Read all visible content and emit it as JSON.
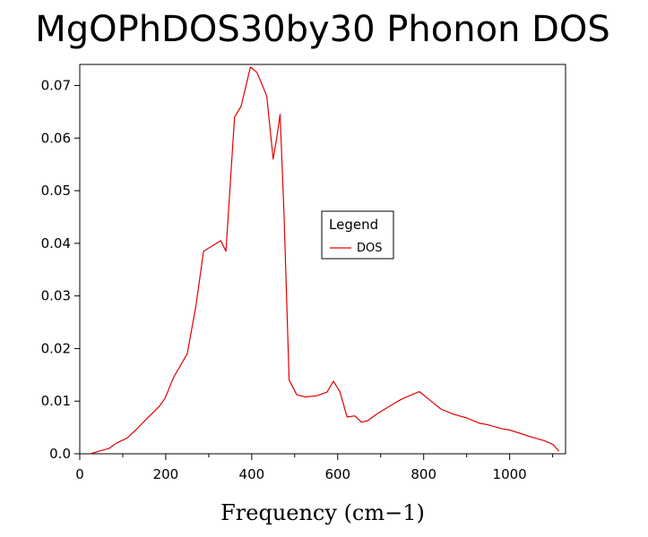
{
  "chart_data": {
    "type": "line",
    "title": "MgOPhDOS30by30 Phonon DOS",
    "xlabel": "Frequency (cm−1)",
    "ylabel": "",
    "xlim": [
      0,
      1130
    ],
    "ylim": [
      0,
      0.074
    ],
    "x_ticks": [
      0,
      200,
      400,
      600,
      800,
      1000
    ],
    "y_ticks": [
      0.0,
      0.01,
      0.02,
      0.03,
      0.04,
      0.05,
      0.06,
      0.07
    ],
    "x_tick_labels": [
      "0",
      "200",
      "400",
      "600",
      "800",
      "1000"
    ],
    "y_tick_labels": [
      "0.0",
      "0.01",
      "0.02",
      "0.03",
      "0.04",
      "0.05",
      "0.06",
      "0.07"
    ],
    "grid": false,
    "legend": {
      "title": "Legend",
      "placement": "center-right",
      "entries": [
        "DOS"
      ]
    },
    "series": [
      {
        "name": "DOS",
        "color": "#e00000",
        "x": [
          25,
          45,
          68,
          85,
          110,
          130,
          160,
          185,
          198,
          218,
          250,
          270,
          288,
          318,
          328,
          340,
          360,
          375,
          397,
          412,
          425,
          435,
          450,
          458,
          466,
          475,
          487,
          505,
          525,
          550,
          575,
          590,
          605,
          622,
          640,
          655,
          670,
          690,
          710,
          740,
          760,
          790,
          810,
          840,
          870,
          900,
          930,
          950,
          980,
          1000,
          1020,
          1050,
          1080,
          1100,
          1115
        ],
        "y": [
          0.0,
          0.0005,
          0.001,
          0.002,
          0.003,
          0.0045,
          0.007,
          0.009,
          0.0105,
          0.0145,
          0.019,
          0.028,
          0.0385,
          0.04,
          0.0405,
          0.0385,
          0.064,
          0.066,
          0.0735,
          0.0725,
          0.07,
          0.068,
          0.056,
          0.06,
          0.0645,
          0.046,
          0.014,
          0.0112,
          0.0108,
          0.011,
          0.0117,
          0.0138,
          0.0118,
          0.007,
          0.0072,
          0.006,
          0.0063,
          0.0075,
          0.0085,
          0.01,
          0.0108,
          0.0118,
          0.0105,
          0.0085,
          0.0075,
          0.0068,
          0.0058,
          0.0055,
          0.0048,
          0.0045,
          0.004,
          0.0032,
          0.0025,
          0.0018,
          0.0005
        ]
      }
    ]
  }
}
